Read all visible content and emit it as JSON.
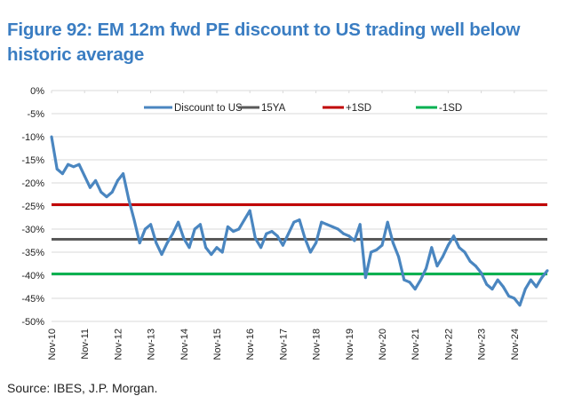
{
  "chart_data": {
    "type": "line",
    "title": "Figure 92: EM 12m fwd PE discount to US trading well below historic average",
    "source": "Source: IBES, J.P. Morgan.",
    "xlabel": "",
    "ylabel": "",
    "ylim": [
      -50,
      0
    ],
    "yticks": [
      "0%",
      "-5%",
      "-10%",
      "-15%",
      "-20%",
      "-25%",
      "-30%",
      "-35%",
      "-40%",
      "-45%",
      "-50%"
    ],
    "yvalues": [
      0,
      -5,
      -10,
      -15,
      -20,
      -25,
      -30,
      -35,
      -40,
      -45,
      -50
    ],
    "xlim": [
      "2010-11",
      "2025-11"
    ],
    "xticks": [
      "Nov-10",
      "Nov-11",
      "Nov-12",
      "Nov-13",
      "Nov-14",
      "Nov-15",
      "Nov-16",
      "Nov-17",
      "Nov-18",
      "Nov-19",
      "Nov-20",
      "Nov-21",
      "Nov-22",
      "Nov-23",
      "Nov-24"
    ],
    "grid": true,
    "legend_position": "top",
    "series": [
      {
        "name": "Discount to US",
        "color": "#4A86C0",
        "x": [
          "2010-11",
          "2011-01",
          "2011-03",
          "2011-05",
          "2011-07",
          "2011-09",
          "2011-11",
          "2012-01",
          "2012-03",
          "2012-05",
          "2012-07",
          "2012-09",
          "2012-11",
          "2013-01",
          "2013-03",
          "2013-05",
          "2013-07",
          "2013-09",
          "2013-11",
          "2014-01",
          "2014-03",
          "2014-05",
          "2014-07",
          "2014-09",
          "2014-11",
          "2015-01",
          "2015-03",
          "2015-05",
          "2015-07",
          "2015-09",
          "2015-11",
          "2016-01",
          "2016-03",
          "2016-05",
          "2016-07",
          "2016-09",
          "2016-11",
          "2017-01",
          "2017-03",
          "2017-05",
          "2017-07",
          "2017-09",
          "2017-11",
          "2018-01",
          "2018-03",
          "2018-05",
          "2018-07",
          "2018-09",
          "2018-11",
          "2019-01",
          "2019-03",
          "2019-05",
          "2019-07",
          "2019-09",
          "2019-11",
          "2020-01",
          "2020-03",
          "2020-05",
          "2020-07",
          "2020-09",
          "2020-11",
          "2021-01",
          "2021-03",
          "2021-05",
          "2021-07",
          "2021-09",
          "2021-11",
          "2022-01",
          "2022-03",
          "2022-05",
          "2022-07",
          "2022-09",
          "2022-11",
          "2023-01",
          "2023-03",
          "2023-05",
          "2023-07",
          "2023-09",
          "2023-11",
          "2024-01",
          "2024-03",
          "2024-05",
          "2024-07",
          "2024-09",
          "2024-11",
          "2025-01",
          "2025-03",
          "2025-05",
          "2025-07",
          "2025-09",
          "2025-11"
        ],
        "values": [
          -10,
          -17,
          -18,
          -16,
          -16.5,
          -16,
          -18.5,
          -21,
          -19.5,
          -22,
          -23,
          -22,
          -19.5,
          -18,
          -23.5,
          -28,
          -33,
          -30,
          -29,
          -33,
          -35.5,
          -33,
          -31,
          -28.5,
          -32,
          -34,
          -30,
          -29,
          -34,
          -35.5,
          -34,
          -35,
          -29.5,
          -30.5,
          -30,
          -28,
          -26,
          -32,
          -34,
          -31,
          -30.5,
          -31.5,
          -33.5,
          -31,
          -28.5,
          -28,
          -32,
          -35,
          -33,
          -28.5,
          -29,
          -29.5,
          -30,
          -31,
          -31.5,
          -32.5,
          -29,
          -40.5,
          -35,
          -34.5,
          -33.5,
          -28.5,
          -33,
          -36,
          -41,
          -41.5,
          -43,
          -41,
          -38.5,
          -34,
          -38,
          -36,
          -33.5,
          -31.5,
          -34,
          -35,
          -37,
          -38,
          -39.5,
          -42,
          -43,
          -41,
          -42.5,
          -44.5,
          -45,
          -46.5,
          -43,
          -41,
          -42.5,
          -40.5,
          -39
        ]
      },
      {
        "name": "15YA",
        "color": "#595959",
        "values": [
          -32.2
        ]
      },
      {
        "name": "+1SD",
        "color": "#C00000",
        "values": [
          -24.7
        ]
      },
      {
        "name": "-1SD",
        "color": "#00B050",
        "values": [
          -39.7
        ]
      }
    ]
  }
}
